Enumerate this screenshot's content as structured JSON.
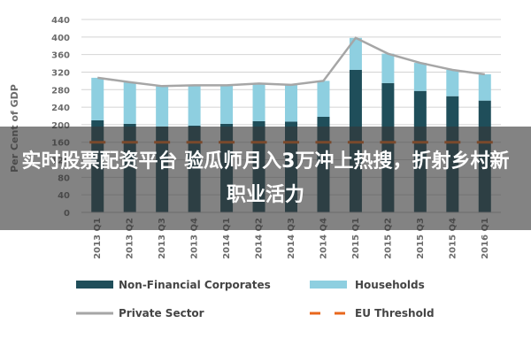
{
  "overlay": {
    "caption": "实时股票配资平台 验瓜师月入3万冲上热搜，折射乡村新职业活力"
  },
  "chart_data": {
    "type": "bar",
    "stacked": true,
    "ylabel": "Per Cent of GDP",
    "ylim": [
      0,
      440
    ],
    "yticks": [
      0,
      40,
      80,
      120,
      160,
      200,
      240,
      280,
      320,
      360,
      400,
      440
    ],
    "grid": true,
    "legend_position": "bottom",
    "categories": [
      "2013 Q1",
      "2013 Q2",
      "2013 Q3",
      "2013 Q4",
      "2014 Q1",
      "2014 Q2",
      "2014 Q3",
      "2014 Q4",
      "2015 Q1",
      "2015 Q2",
      "2015 Q3",
      "2015 Q4",
      "2016 Q1"
    ],
    "series": [
      {
        "name": "Non-Financial Corporates",
        "kind": "bar",
        "color": "#1f4e5a",
        "values": [
          210,
          202,
          196,
          198,
          202,
          208,
          207,
          218,
          325,
          295,
          277,
          265,
          255
        ]
      },
      {
        "name": "Households",
        "kind": "bar",
        "color": "#8ecfe0",
        "values": [
          97,
          95,
          92,
          92,
          88,
          86,
          84,
          82,
          73,
          67,
          64,
          60,
          60
        ]
      },
      {
        "name": "Private Sector",
        "kind": "line",
        "color": "#a6a6a6",
        "values": [
          307,
          297,
          288,
          290,
          290,
          294,
          291,
          300,
          398,
          362,
          341,
          325,
          315
        ]
      },
      {
        "name": "EU Threshold",
        "kind": "dashes",
        "color": "#e8671c",
        "values": [
          160,
          160,
          160,
          160,
          160,
          160,
          160,
          160,
          160,
          160,
          160,
          160,
          160
        ]
      }
    ]
  }
}
